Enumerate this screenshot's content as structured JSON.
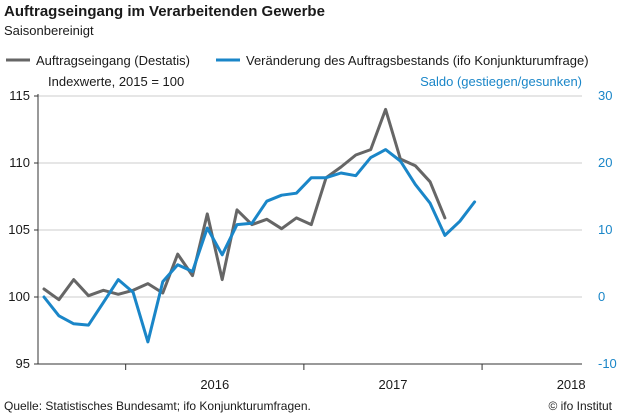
{
  "header": {
    "title": "Auftragseingang im Verarbeitenden Gewerbe",
    "subtitle": "Saisonbereinigt"
  },
  "footer": {
    "source": "Quelle:  Statistisches Bundesamt;  ifo Konjunkturumfragen.",
    "credit": "© ifo Institut"
  },
  "colors": {
    "series_gray": "#666666",
    "series_blue": "#1a86c8",
    "axis": "#333333",
    "grid": "#cccccc"
  },
  "chart_data": {
    "type": "line",
    "title": "Auftragseingang im Verarbeitenden Gewerbe",
    "subtitle": "Saisonbereinigt",
    "x_tick_labels": [
      "2016",
      "2017",
      "2018"
    ],
    "left_axis": {
      "label": "Indexwerte, 2015 = 100",
      "ylim": [
        95,
        115
      ],
      "ticks": [
        95,
        100,
        105,
        110,
        115
      ]
    },
    "right_axis": {
      "label": "Saldo (gestiegen/gesunken)",
      "ylim": [
        -10,
        30
      ],
      "ticks": [
        -10,
        0,
        10,
        20,
        30
      ]
    },
    "periods": [
      "2015-07",
      "2015-08",
      "2015-09",
      "2015-10",
      "2015-11",
      "2015-12",
      "2016-01",
      "2016-02",
      "2016-03",
      "2016-04",
      "2016-05",
      "2016-06",
      "2016-07",
      "2016-08",
      "2016-09",
      "2016-10",
      "2016-11",
      "2016-12",
      "2017-01",
      "2017-02",
      "2017-03",
      "2017-04",
      "2017-05",
      "2017-06",
      "2017-07",
      "2017-08",
      "2017-09",
      "2017-10",
      "2017-11",
      "2017-12",
      "2018-01",
      "2018-02",
      "2018-03",
      "2018-04"
    ],
    "series": [
      {
        "name": "Auftragseingang (Destatis)",
        "axis": "left",
        "start_index": 0,
        "values": [
          100.6,
          99.8,
          101.3,
          100.1,
          100.5,
          100.2,
          100.5,
          101.0,
          100.3,
          103.2,
          101.6,
          106.2,
          101.3,
          106.5,
          105.4,
          105.8,
          105.1,
          105.9,
          105.4,
          108.9,
          109.7,
          110.6,
          111.0,
          114.0,
          110.3,
          109.8,
          108.6,
          105.9
        ]
      },
      {
        "name": "Veränderung des Auftragsbestands (ifo Konjunkturumfrage)",
        "axis": "right",
        "start_index": 0,
        "values": [
          0.0,
          -2.8,
          -4.0,
          -4.2,
          -0.8,
          2.6,
          0.7,
          -6.7,
          2.3,
          4.8,
          3.8,
          10.3,
          6.3,
          10.8,
          11.0,
          14.3,
          15.2,
          15.5,
          17.8,
          17.8,
          18.5,
          18.1,
          20.8,
          22.0,
          20.3,
          16.8,
          14.0,
          9.2,
          11.3,
          14.2
        ]
      }
    ],
    "legend": {
      "placement": "top",
      "items": [
        "Auftragseingang (Destatis)",
        "Veränderung des Auftragsbestands (ifo Konjunkturumfrage)"
      ]
    },
    "grid": true
  }
}
